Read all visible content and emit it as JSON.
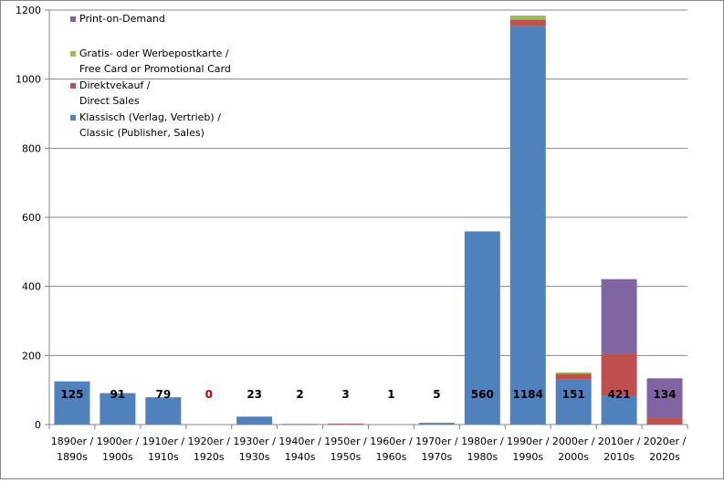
{
  "chart_data": {
    "type": "bar",
    "stacked": true,
    "categories": [
      [
        "1890er /",
        "1890s"
      ],
      [
        "1900er /",
        "1900s"
      ],
      [
        "1910er /",
        "1910s"
      ],
      [
        "1920er /",
        "1920s"
      ],
      [
        "1930er /",
        "1930s"
      ],
      [
        "1940er /",
        "1940s"
      ],
      [
        "1950er /",
        "1950s"
      ],
      [
        "1960er /",
        "1960s"
      ],
      [
        "1970er /",
        "1970s"
      ],
      [
        "1980er /",
        "1980s"
      ],
      [
        "1990er /",
        "1990s"
      ],
      [
        "2000er /",
        "2000s"
      ],
      [
        "2010er /",
        "2010s"
      ],
      [
        "2020er /",
        "2020s"
      ]
    ],
    "series": [
      {
        "name": [
          "Klassisch (Verlag, Vertrieb) /",
          "Classic (Publisher, Sales)"
        ],
        "color": "#4f81bd",
        "values": [
          125,
          91,
          79,
          0,
          23,
          2,
          1,
          1,
          5,
          558,
          1154,
          130,
          83,
          0
        ]
      },
      {
        "name": [
          "Direktvekauf /",
          "Direct Sales"
        ],
        "color": "#c0504d",
        "values": [
          0,
          0,
          0,
          0,
          0,
          0,
          2,
          0,
          0,
          0,
          18,
          17,
          122,
          20
        ]
      },
      {
        "name": [
          "Gratis- oder Werbepostkarte /",
          "Free  Card or Promotional Card"
        ],
        "color": "#9bbb59",
        "values": [
          0,
          0,
          0,
          0,
          0,
          0,
          0,
          0,
          0,
          2,
          12,
          4,
          0,
          0
        ]
      },
      {
        "name": [
          "Print-on-Demand"
        ],
        "color": "#8064a2",
        "values": [
          0,
          0,
          0,
          0,
          0,
          0,
          0,
          0,
          0,
          0,
          0,
          0,
          216,
          114
        ]
      }
    ],
    "totals": [
      "125",
      "91",
      "79",
      "0",
      "23",
      "2",
      "3",
      "1",
      "5",
      "560",
      "1184",
      "151",
      "421",
      "134"
    ],
    "total_label_colors": [
      "#000000",
      "#000000",
      "#000000",
      "#c00000",
      "#000000",
      "#000000",
      "#000000",
      "#000000",
      "#000000",
      "#000000",
      "#000000",
      "#000000",
      "#000000",
      "#000000"
    ],
    "y_ticks": [
      "0",
      "200",
      "400",
      "600",
      "800",
      "1000",
      "1200"
    ],
    "ylim": [
      0,
      1200
    ],
    "grid": true,
    "legend_position": "top-left inside plot",
    "legend_order": [
      3,
      2,
      1,
      0
    ]
  }
}
